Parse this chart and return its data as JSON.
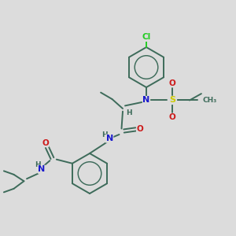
{
  "background_color": "#dcdcdc",
  "bond_color": "#3d6b5a",
  "bond_width": 1.4,
  "atom_colors": {
    "C": "#3d6b5a",
    "N": "#1a1acc",
    "O": "#cc1a1a",
    "S": "#cccc00",
    "Cl": "#22cc22",
    "H": "#3d6b5a"
  },
  "fig_width": 3.0,
  "fig_height": 3.0,
  "dpi": 100
}
